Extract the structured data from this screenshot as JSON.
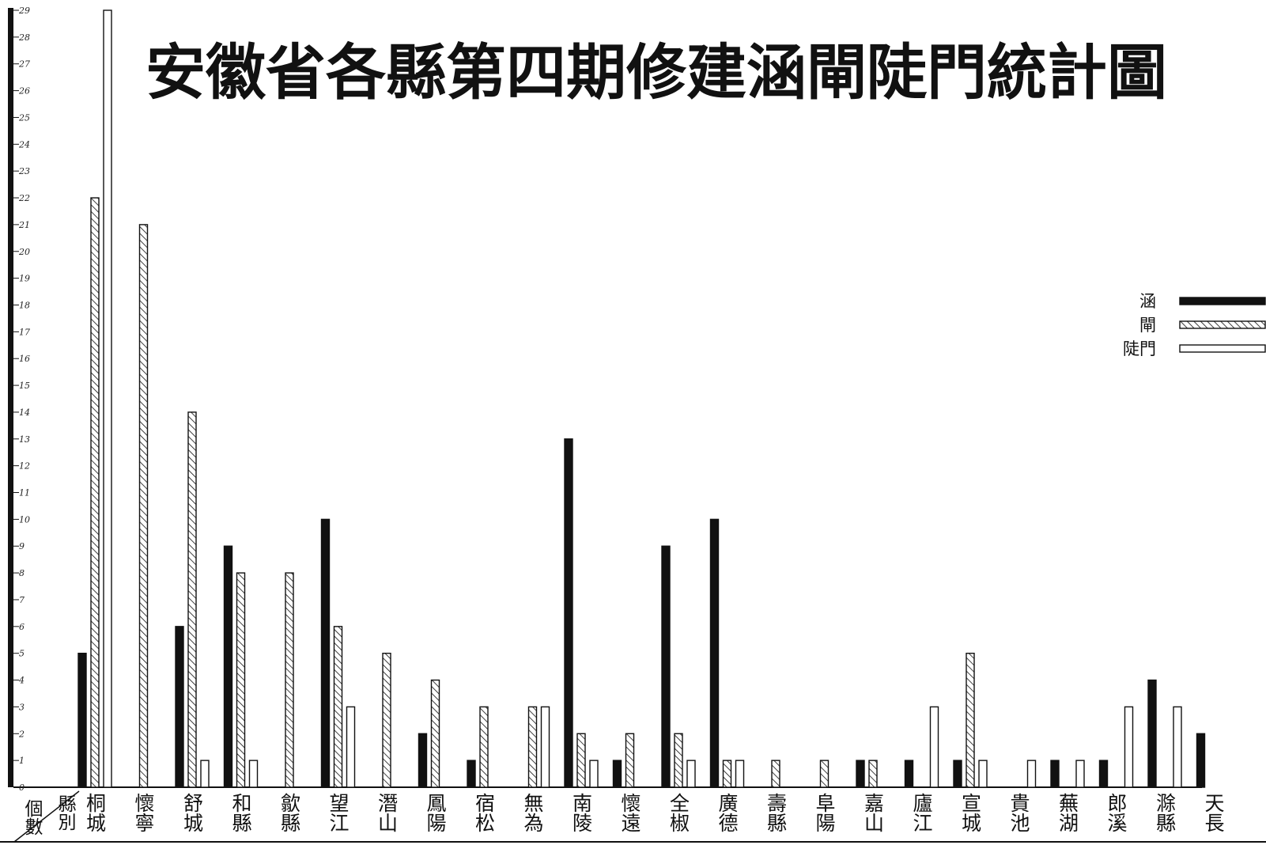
{
  "chart_data": {
    "type": "bar",
    "title": "安徽省各縣第四期修建涵閘陡門統計圖",
    "corner_labels": {
      "count": "個數",
      "county": "縣別"
    },
    "ylim": [
      0,
      29
    ],
    "yticks": [
      0,
      1,
      2,
      3,
      4,
      5,
      6,
      7,
      8,
      9,
      10,
      11,
      12,
      13,
      14,
      15,
      16,
      17,
      18,
      19,
      20,
      21,
      22,
      23,
      24,
      25,
      26,
      27,
      28,
      29
    ],
    "grid": false,
    "legend_position": "right",
    "categories": [
      "桐城",
      "懷寧",
      "舒城",
      "和縣",
      "歙縣",
      "望江",
      "潛山",
      "鳳陽",
      "宿松",
      "無為",
      "南陵",
      "懷遠",
      "全椒",
      "廣德",
      "壽縣",
      "阜陽",
      "嘉山",
      "廬江",
      "宣城",
      "貴池",
      "蕪湖",
      "郎溪",
      "滁縣",
      "天長"
    ],
    "series": [
      {
        "name": "涵",
        "pattern": "solid",
        "values": [
          5,
          0,
          6,
          9,
          0,
          10,
          0,
          2,
          1,
          0,
          13,
          1,
          9,
          10,
          0,
          0,
          1,
          1,
          1,
          0,
          1,
          1,
          4,
          2
        ]
      },
      {
        "name": "閘",
        "pattern": "hatched",
        "values": [
          22,
          21,
          14,
          8,
          8,
          6,
          5,
          4,
          3,
          3,
          2,
          2,
          2,
          1,
          1,
          1,
          1,
          0,
          5,
          0,
          0,
          0,
          0,
          0
        ]
      },
      {
        "name": "陡門",
        "pattern": "open",
        "values": [
          29,
          0,
          1,
          1,
          0,
          3,
          0,
          0,
          0,
          3,
          1,
          0,
          1,
          1,
          0,
          0,
          0,
          3,
          1,
          1,
          1,
          3,
          3,
          0
        ]
      }
    ],
    "colors": {
      "ink": "#111111",
      "paper": "#ffffff"
    }
  }
}
